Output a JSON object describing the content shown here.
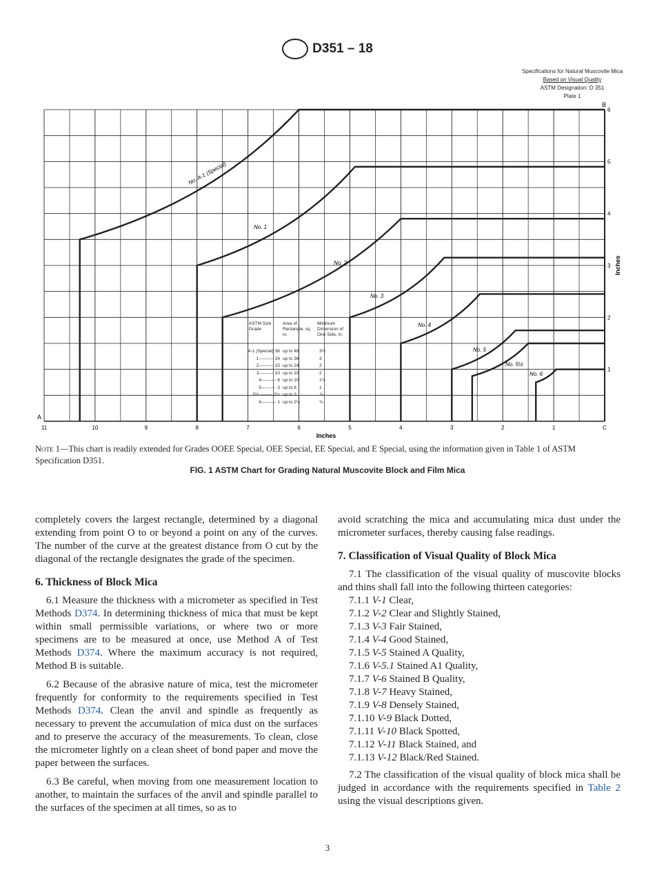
{
  "header": {
    "logo": "ASTM",
    "designation": "D351 – 18"
  },
  "plate": [
    "Specifications for Natural Muscovite Mica",
    "Based on Visual Quality",
    "ASTM Designation: D 351",
    "Plate 1"
  ],
  "chart_data": {
    "type": "line",
    "xlabel": "Inches",
    "ylabel": "Inches",
    "xlim": [
      11,
      0
    ],
    "ylim": [
      0,
      6
    ],
    "x_ticks": [
      "11",
      "10",
      "9",
      "8",
      "7",
      "6",
      "5",
      "4",
      "3",
      "2",
      "1",
      "C"
    ],
    "y_ticks": [
      "1",
      "2",
      "3",
      "4",
      "5",
      "6"
    ],
    "corner_labels": {
      "origin": "A",
      "top_right": "B",
      "bottom_right": "C"
    },
    "grid": true,
    "series": [
      {
        "name": "No. A-1 (Special)",
        "start": [
          10.3,
          0
        ],
        "knee": [
          10.3,
          3.5
        ],
        "top": [
          6.0,
          6.0
        ]
      },
      {
        "name": "No. 1",
        "start": [
          8.0,
          0
        ],
        "knee": [
          8.0,
          3.0
        ],
        "top": [
          4.9,
          4.9
        ]
      },
      {
        "name": "No. 2",
        "start": [
          7.5,
          0
        ],
        "knee": [
          7.5,
          2.0
        ],
        "top": [
          4.0,
          3.9
        ]
      },
      {
        "name": "No. 3",
        "start": [
          5.0,
          0
        ],
        "knee": [
          5.0,
          2.0
        ],
        "top": [
          3.15,
          3.15
        ]
      },
      {
        "name": "No. 4",
        "start": [
          4.0,
          0
        ],
        "knee": [
          4.0,
          1.5
        ],
        "top": [
          2.45,
          2.45
        ]
      },
      {
        "name": "No. 5",
        "start": [
          3.0,
          0
        ],
        "knee": [
          3.0,
          1.0
        ],
        "top": [
          1.75,
          1.75
        ]
      },
      {
        "name": "No. 5½",
        "start": [
          2.6,
          0
        ],
        "knee": [
          2.6,
          0.87
        ],
        "top": [
          1.5,
          1.5
        ]
      },
      {
        "name": "No. 6",
        "start": [
          1.35,
          0
        ],
        "knee": [
          1.35,
          0.75
        ],
        "top": [
          0.95,
          1.0
        ]
      }
    ],
    "table": {
      "headers": [
        "ASTM Size Grade",
        "Area of Rectangle, sq in.",
        "Minimum Dimension of One Side, in."
      ],
      "rows": [
        [
          "A-1 (Special) 36",
          "up to 48",
          "3½"
        ],
        [
          "1---------- 24",
          "up to 36",
          "3"
        ],
        [
          "2---------- 15",
          "up to 24",
          "2"
        ],
        [
          "3---------- 10",
          "up to 15",
          "2"
        ],
        [
          "4---------- 6",
          "up to 10",
          "1½"
        ],
        [
          "5---------- 3",
          "up to 6",
          "1"
        ],
        [
          "5½ -------- 2¼",
          "up to 3",
          "⅞"
        ],
        [
          "6---------- 1",
          "up to 2¼",
          "¾"
        ]
      ]
    }
  },
  "note": {
    "label": "Note 1",
    "text": "—This chart is readily extended for Grades OOEE Special, OEE Special, EE Special, and E Special, using the information given in Table 1 of ASTM Specification D351."
  },
  "figure_caption": "FIG. 1 ASTM Chart for Grading Natural Muscovite Block and Film Mica",
  "left": {
    "p0": "completely covers the largest rectangle, determined by a diagonal extending from point O to or beyond a point on any of the curves. The number of the curve at the greatest distance from O cut by the diagonal of the rectangle designates the grade of the specimen.",
    "h6": "6. Thickness of Block Mica",
    "p61a": "6.1 Measure the thickness with a micrometer as specified in Test Methods ",
    "link": "D374",
    "p61b": ". In determining thickness of mica that must be kept within small permissible variations, or where two or more specimens are to be measured at once, use Method A of Test Methods ",
    "p61c": ". Where the maximum accuracy is not required, Method B is suitable.",
    "p62a": "6.2 Because of the abrasive nature of mica, test the micrometer frequently for conformity to the requirements specified in Test Methods ",
    "p62b": ". Clean the anvil and spindle as frequently as necessary to prevent the accumulation of mica dust on the surfaces and to preserve the accuracy of the measurements. To clean, close the micrometer lightly on a clean sheet of bond paper and move the paper between the surfaces.",
    "p63": "6.3 Be careful, when moving from one measurement location to another, to maintain the surfaces of the anvil and spindle parallel to the surfaces of the specimen at all times, so as to"
  },
  "right": {
    "p0": "avoid scratching the mica and accumulating mica dust under the micrometer surfaces, thereby causing false readings.",
    "h7": "7. Classification of Visual Quality of Block Mica",
    "p71": "7.1 The classification of the visual quality of muscovite blocks and thins shall fall into the following thirteen categories:",
    "items": [
      {
        "num": "7.1.1",
        "code": "V-1",
        "text": "Clear,"
      },
      {
        "num": "7.1.2",
        "code": "V-2",
        "text": "Clear and Slightly Stained,"
      },
      {
        "num": "7.1.3",
        "code": "V-3",
        "text": "Fair Stained,"
      },
      {
        "num": "7.1.4",
        "code": "V-4",
        "text": "Good Stained,"
      },
      {
        "num": "7.1.5",
        "code": "V-5",
        "text": "Stained A Quality,"
      },
      {
        "num": "7.1.6",
        "code": "V-5.1",
        "text": "Stained A1 Quality,"
      },
      {
        "num": "7.1.7",
        "code": "V-6",
        "text": "Stained B Quality,"
      },
      {
        "num": "7.1.8",
        "code": "V-7",
        "text": "Heavy Stained,"
      },
      {
        "num": "7.1.9",
        "code": "V-8",
        "text": "Densely Stained,"
      },
      {
        "num": "7.1.10",
        "code": "V-9",
        "text": "Black Dotted,"
      },
      {
        "num": "7.1.11",
        "code": "V-10",
        "text": "Black Spotted,"
      },
      {
        "num": "7.1.12",
        "code": "V-11",
        "text": "Black Stained, and"
      },
      {
        "num": "7.1.13",
        "code": "V-12",
        "text": "Black/Red Stained."
      }
    ],
    "p72a": "7.2 The classification of the visual quality of block mica shall be judged in accordance with the requirements specified in ",
    "p72link": "Table 2",
    "p72b": " using the visual descriptions given."
  },
  "page_number": "3"
}
